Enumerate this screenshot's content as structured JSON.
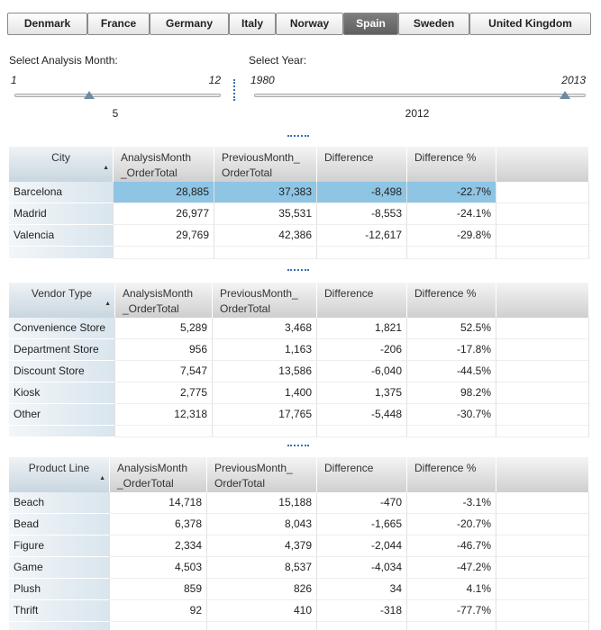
{
  "tabs": {
    "items": [
      "Denmark",
      "France",
      "Germany",
      "Italy",
      "Norway",
      "Spain",
      "Sweden",
      "United Kingdom"
    ],
    "selected": 5
  },
  "sliders": [
    {
      "label": "Select Analysis Month:",
      "min": 1,
      "max": 12,
      "value": 5
    },
    {
      "label": "Select Year:",
      "min": 1980,
      "max": 2013,
      "value": 2012
    }
  ],
  "tables": [
    {
      "headers": [
        "City",
        "AnalysisMonth _OrderTotal",
        "PreviousMonth_ OrderTotal",
        "Difference",
        "Difference %"
      ],
      "highlighted_row": 0,
      "rows": [
        [
          "Barcelona",
          "28,885",
          "37,383",
          "-8,498",
          "-22.7%"
        ],
        [
          "Madrid",
          "26,977",
          "35,531",
          "-8,553",
          "-24.1%"
        ],
        [
          "Valencia",
          "29,769",
          "42,386",
          "-12,617",
          "-29.8%"
        ]
      ]
    },
    {
      "headers": [
        "Vendor Type",
        "AnalysisMonth _OrderTotal",
        "PreviousMonth_ OrderTotal",
        "Difference",
        "Difference %"
      ],
      "rows": [
        [
          "Convenience Store",
          "5,289",
          "3,468",
          "1,821",
          "52.5%"
        ],
        [
          "Department Store",
          "956",
          "1,163",
          "-206",
          "-17.8%"
        ],
        [
          "Discount Store",
          "7,547",
          "13,586",
          "-6,040",
          "-44.5%"
        ],
        [
          "Kiosk",
          "2,775",
          "1,400",
          "1,375",
          "98.2%"
        ],
        [
          "Other",
          "12,318",
          "17,765",
          "-5,448",
          "-30.7%"
        ]
      ]
    },
    {
      "headers": [
        "Product Line",
        "AnalysisMonth _OrderTotal",
        "PreviousMonth_ OrderTotal",
        "Difference",
        "Difference %"
      ],
      "rows": [
        [
          "Beach",
          "14,718",
          "15,188",
          "-470",
          "-3.1%"
        ],
        [
          "Bead",
          "6,378",
          "8,043",
          "-1,665",
          "-20.7%"
        ],
        [
          "Figure",
          "2,334",
          "4,379",
          "-2,044",
          "-46.7%"
        ],
        [
          "Game",
          "4,503",
          "8,537",
          "-4,034",
          "-47.2%"
        ],
        [
          "Plush",
          "859",
          "826",
          "34",
          "4.1%"
        ],
        [
          "Thrift",
          "92",
          "410",
          "-318",
          "-77.7%"
        ]
      ]
    }
  ]
}
